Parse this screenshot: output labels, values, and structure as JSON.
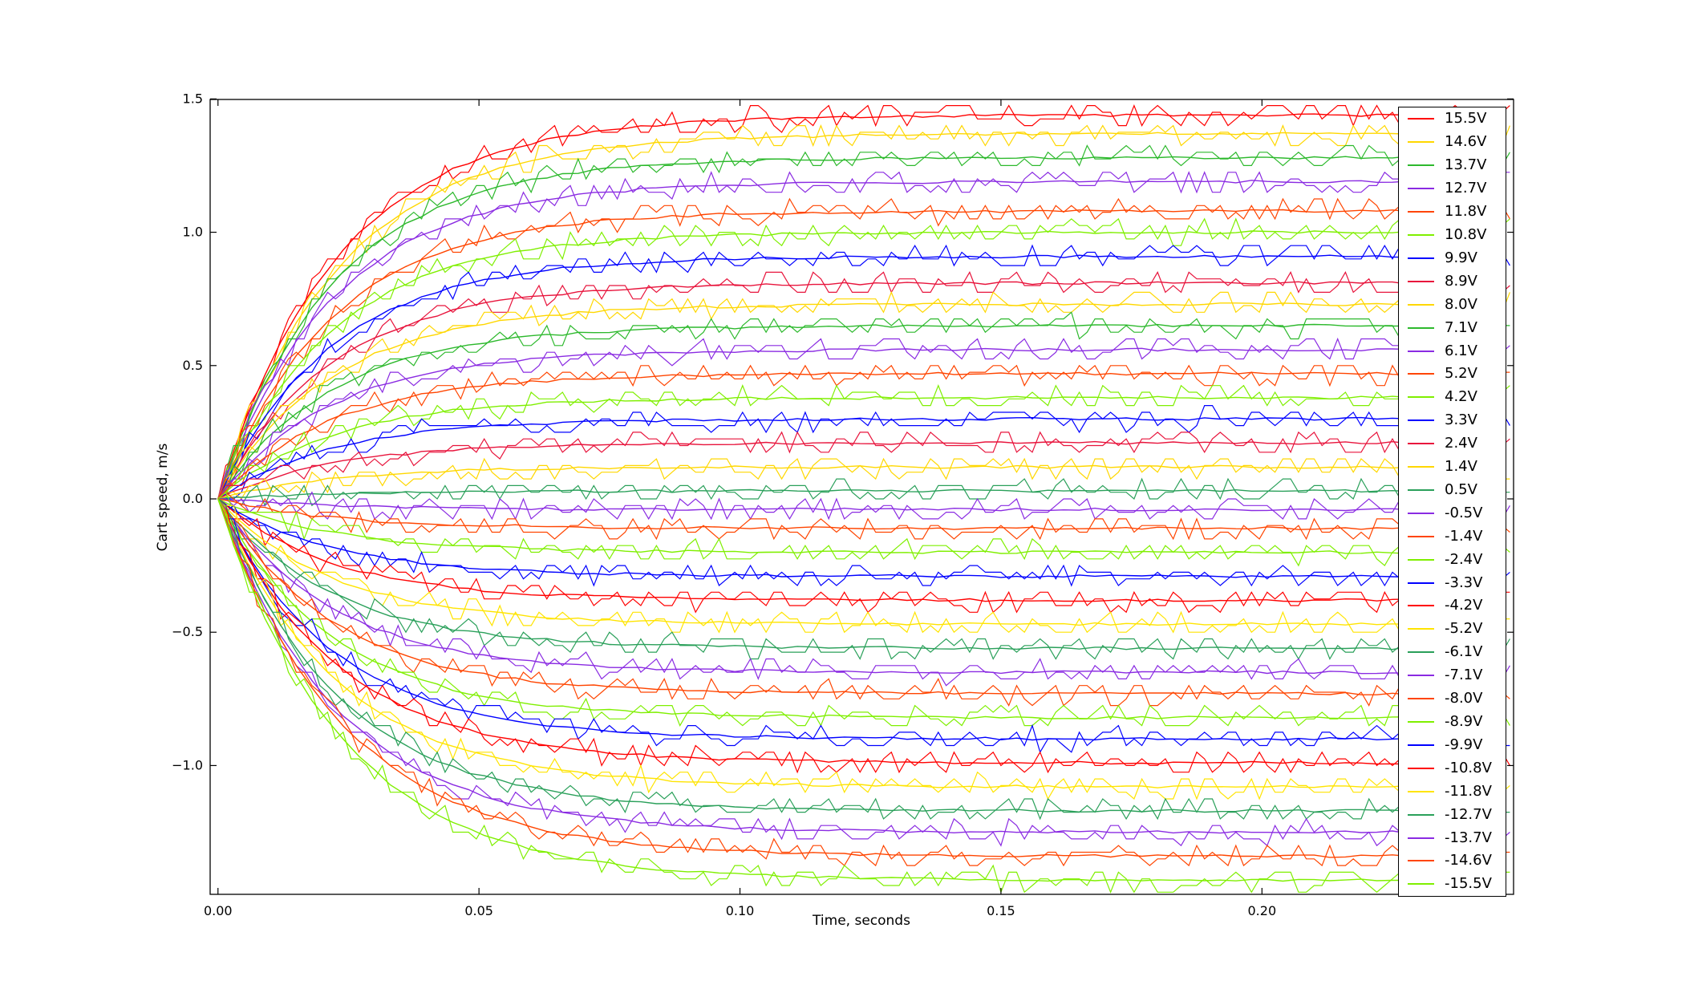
{
  "chart_data": {
    "type": "line",
    "title": "",
    "xlabel": "Time, seconds",
    "ylabel": "Cart speed, m/s",
    "xlim": [
      -0.0015,
      0.2482
    ],
    "ylim": [
      -1.483,
      1.498
    ],
    "grid": false,
    "legend_position": "right",
    "xticks": {
      "values": [
        0.0,
        0.05,
        0.1,
        0.15,
        0.2
      ],
      "labels": [
        "0.00",
        "0.05",
        "0.10",
        "0.15",
        "0.20"
      ]
    },
    "yticks": {
      "values": [
        -1.0,
        -0.5,
        0.0,
        0.5,
        1.0,
        1.5
      ],
      "labels": [
        "−1.0",
        "−0.5",
        "0.0",
        "0.5",
        "1.0",
        "1.5"
      ]
    },
    "model": "each voltage has two traces of the same color: raw quantized speed samples and a smoothed first-order curve v(t)=v_ss*(1-exp(-t/tau)) starting at 0",
    "sample_dt": 0.0015,
    "t_end": 0.2482,
    "noise_step": 0.025,
    "noise_amp": 0.042,
    "series": [
      {
        "label": "15.5V",
        "color": "#ff0000",
        "v_ss": 1.44,
        "tau": 0.023
      },
      {
        "label": "14.6V",
        "color": "#ffd700",
        "v_ss": 1.37,
        "tau": 0.023
      },
      {
        "label": "13.7V",
        "color": "#2db92d",
        "v_ss": 1.28,
        "tau": 0.022
      },
      {
        "label": "12.7V",
        "color": "#8a2be2",
        "v_ss": 1.19,
        "tau": 0.022
      },
      {
        "label": "11.8V",
        "color": "#ff4500",
        "v_ss": 1.08,
        "tau": 0.022
      },
      {
        "label": "10.8V",
        "color": "#7fef00",
        "v_ss": 1.0,
        "tau": 0.022
      },
      {
        "label": "9.9V",
        "color": "#0000ff",
        "v_ss": 0.91,
        "tau": 0.022
      },
      {
        "label": "8.9V",
        "color": "#e8143c",
        "v_ss": 0.81,
        "tau": 0.022
      },
      {
        "label": "8.0V",
        "color": "#ffd700",
        "v_ss": 0.73,
        "tau": 0.022
      },
      {
        "label": "7.1V",
        "color": "#2db92d",
        "v_ss": 0.65,
        "tau": 0.022
      },
      {
        "label": "6.1V",
        "color": "#8a2be2",
        "v_ss": 0.56,
        "tau": 0.022
      },
      {
        "label": "5.2V",
        "color": "#ff4500",
        "v_ss": 0.47,
        "tau": 0.022
      },
      {
        "label": "4.2V",
        "color": "#7fef00",
        "v_ss": 0.38,
        "tau": 0.022
      },
      {
        "label": "3.3V",
        "color": "#0000ff",
        "v_ss": 0.3,
        "tau": 0.022
      },
      {
        "label": "2.4V",
        "color": "#e8143c",
        "v_ss": 0.21,
        "tau": 0.022
      },
      {
        "label": "1.4V",
        "color": "#ffd700",
        "v_ss": 0.12,
        "tau": 0.022
      },
      {
        "label": "0.5V",
        "color": "#2aa05a",
        "v_ss": 0.03,
        "tau": 0.022
      },
      {
        "label": "-0.5V",
        "color": "#8a2be2",
        "v_ss": -0.04,
        "tau": 0.022
      },
      {
        "label": "-1.4V",
        "color": "#ff4500",
        "v_ss": -0.11,
        "tau": 0.022
      },
      {
        "label": "-2.4V",
        "color": "#7fef00",
        "v_ss": -0.2,
        "tau": 0.022
      },
      {
        "label": "-3.3V",
        "color": "#0000ff",
        "v_ss": -0.29,
        "tau": 0.022
      },
      {
        "label": "-4.2V",
        "color": "#ff0000",
        "v_ss": -0.38,
        "tau": 0.022
      },
      {
        "label": "-5.2V",
        "color": "#ffe400",
        "v_ss": -0.47,
        "tau": 0.022
      },
      {
        "label": "-6.1V",
        "color": "#2aa05a",
        "v_ss": -0.56,
        "tau": 0.022
      },
      {
        "label": "-7.1V",
        "color": "#8a2be2",
        "v_ss": -0.65,
        "tau": 0.022
      },
      {
        "label": "-8.0V",
        "color": "#ff4500",
        "v_ss": -0.73,
        "tau": 0.022
      },
      {
        "label": "-8.9V",
        "color": "#7fef00",
        "v_ss": -0.82,
        "tau": 0.022
      },
      {
        "label": "-9.9V",
        "color": "#0000ff",
        "v_ss": -0.9,
        "tau": 0.022
      },
      {
        "label": "-10.8V",
        "color": "#ff0000",
        "v_ss": -0.99,
        "tau": 0.023
      },
      {
        "label": "-11.8V",
        "color": "#ffe400",
        "v_ss": -1.08,
        "tau": 0.023
      },
      {
        "label": "-12.7V",
        "color": "#2aa05a",
        "v_ss": -1.17,
        "tau": 0.023
      },
      {
        "label": "-13.7V",
        "color": "#8a2be2",
        "v_ss": -1.25,
        "tau": 0.023
      },
      {
        "label": "-14.6V",
        "color": "#ff4500",
        "v_ss": -1.34,
        "tau": 0.024
      },
      {
        "label": "-15.5V",
        "color": "#7fef00",
        "v_ss": -1.43,
        "tau": 0.024
      }
    ]
  }
}
